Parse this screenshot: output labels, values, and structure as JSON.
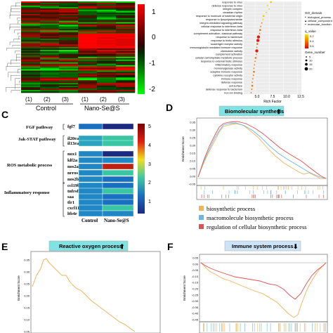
{
  "panel_letters": {
    "c": "C",
    "d": "D",
    "e": "E",
    "f": "F"
  },
  "heatmap_a": {
    "colorbar_ticks": [
      "1",
      "0",
      "-1",
      "-2"
    ],
    "sample_ids": [
      "(1)",
      "(2)",
      "(3)",
      "(1)",
      "(2)",
      "(3)"
    ],
    "groups": [
      "Control",
      "Nano-Se@S"
    ]
  },
  "dotplot_b": {
    "terms": [
      "response to virus",
      "defense response to virus",
      "integrin complex",
      "circadian rhythm",
      "response to molecule of bacterial origin",
      "response to lipopolysaccharide",
      "integrin-mediated signaling pathway",
      "cellular response to interferon-beta",
      "response to interferon-beta",
      "complement activation, classical pathway",
      "response to bacterium",
      "response to biotic stimulus",
      "scavenger receptor activity",
      "immunoglobulin mediated immune response",
      "chemokine activity",
      "complement activation",
      "cellular carbohydrate metabolic process",
      "response to external biotic stimulus",
      "inflammatory response",
      "monooxygenase activity",
      "adaptive immune response",
      "cytokine receptor activity",
      "immune response",
      "defense response",
      "cell surface",
      "defense response to bacterium",
      "iron ion binding"
    ],
    "x_ticks": [
      "5.0",
      "7.5",
      "10.0",
      "12.5"
    ],
    "xlabel": "Rich Factor",
    "legend": {
      "go_title": "GO_domain",
      "go_items": [
        "biological_process",
        "cellular_component",
        "molecular_function"
      ],
      "q_title": "q_value",
      "q_ticks": [
        "0.2",
        "0.4",
        "0.6"
      ],
      "gene_title": "Gene_number",
      "gene_items": [
        "5",
        "10",
        "15",
        "20"
      ]
    }
  },
  "heatmap_c": {
    "pathway_labels": [
      "FGF pathway",
      "Jak-STAT pathway",
      "ROS metabolic process",
      "Inflammatory response"
    ],
    "genes": [
      "fgf7",
      "il20ra",
      "il13ra1",
      "nox1",
      "klf2a",
      "nos2a",
      "nrros",
      "nos2b",
      "ccl19b",
      "tnfrsf9a",
      "saa",
      "tlr1",
      "cxcl11.8",
      "ltb4r"
    ],
    "columns": [
      "Control",
      "Nano-Se@S"
    ],
    "colorbar_ticks": [
      "5",
      "4",
      "3",
      "2",
      "1"
    ]
  },
  "gsea_d": {
    "title": "Biomolecular synthesis",
    "ylabel": "Enrichment Score",
    "y_ticks": [
      "0.35",
      "0.30",
      "0.25",
      "0.20",
      "0.15",
      "0.10",
      "0.05",
      "0.00",
      "-0.05"
    ],
    "legend": [
      "biosynthetic process",
      "macromolecule biosynthetic process",
      "regulation of cellular biosynthetic process"
    ],
    "colors": {
      "orange": "#f2b35a",
      "blue": "#6ab7e6",
      "red": "#e05050"
    }
  },
  "gsea_e": {
    "title": "Reactive oxygen process",
    "ylabel": "Enrichment Score",
    "y_ticks": [
      "0.35",
      "0.30",
      "0.25",
      "0.20",
      "0.15",
      "0.10",
      "0.05"
    ]
  },
  "gsea_f": {
    "title": "Immune system process",
    "ylabel": "Enrichment Score",
    "y_ticks": [
      "0.05",
      "0.00",
      "-0.05",
      "-0.10",
      "-0.15",
      "-0.20",
      "-0.25",
      "-0.30",
      "-0.35",
      "-0.40",
      "-0.45"
    ]
  }
}
